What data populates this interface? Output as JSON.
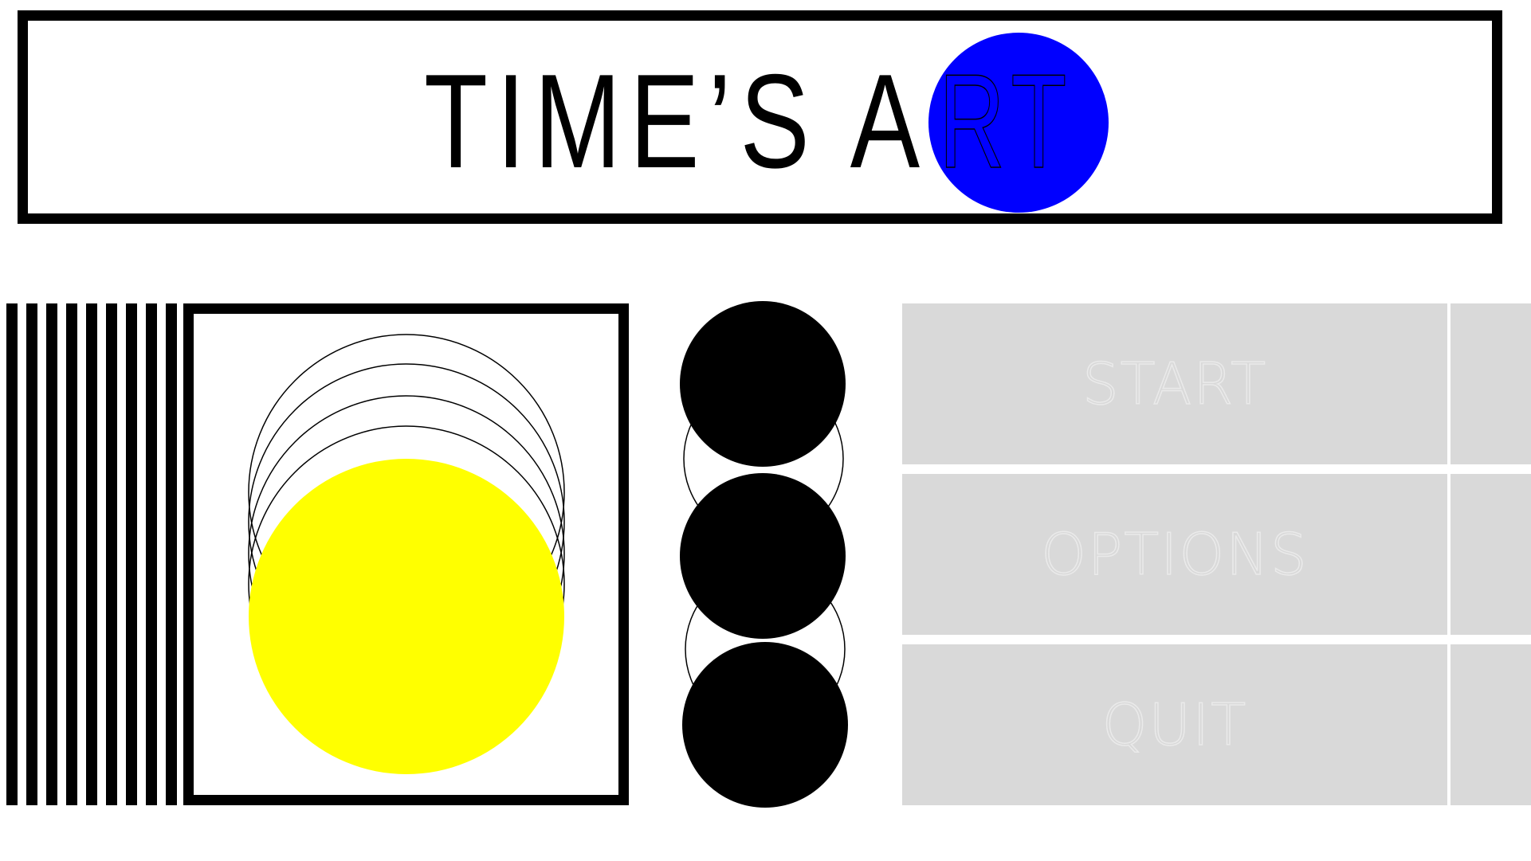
{
  "title": {
    "prefix": "TIME’S A",
    "suffix": "RT"
  },
  "menu": {
    "items": [
      {
        "label": "START"
      },
      {
        "label": "OPTIONS"
      },
      {
        "label": "QUIT"
      }
    ]
  },
  "colors": {
    "background": "#ffffff",
    "ink": "#000000",
    "blue_circle": "#0000ff",
    "yellow_circle": "#ffff00",
    "menu_fill": "#d9d9d9",
    "menu_text": "#eaeaea"
  }
}
